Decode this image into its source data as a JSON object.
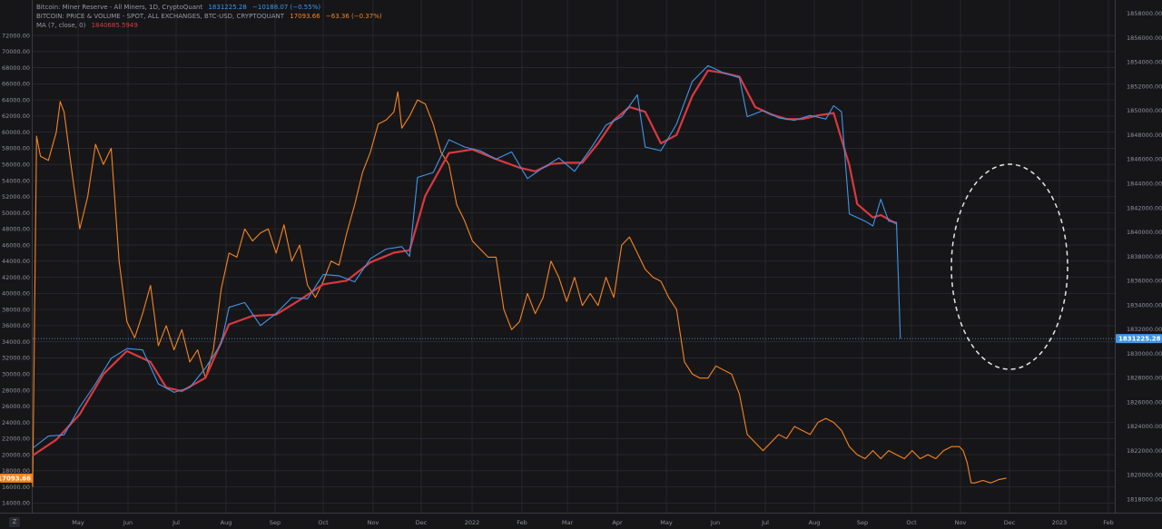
{
  "legend": {
    "series1_name": "Bitcoin: Miner Reserve - All Miners, 1D, CryptoQuant",
    "series1_value": "1831225.28",
    "series1_change": "−10188.07 (−0.55%)",
    "series2_name": "BITCOIN: PRICE & VOLUME - SPOT, ALL EXCHANGES, BTC-USD, CRYPTOQUANT",
    "series2_value": "17093.66",
    "series2_change": "−63.36 (−0.37%)",
    "series3_name": "MA (7, close, 0)",
    "series3_value": "1840685.5949"
  },
  "corner_label": "Z",
  "colors": {
    "background": "#161619",
    "grid": "#2a2b30",
    "price": "#f7841f",
    "reserve": "#3f96e8",
    "ma": "#d9393f",
    "ellipse": "#e6e6e6"
  },
  "chart_data": {
    "type": "line",
    "left_axis": {
      "ticks": [
        "14000.00",
        "16000.00",
        "18000.00",
        "20000.00",
        "22000.00",
        "24000.00",
        "26000.00",
        "28000.00",
        "30000.00",
        "32000.00",
        "34000.00",
        "36000.00",
        "38000.00",
        "40000.00",
        "42000.00",
        "44000.00",
        "46000.00",
        "48000.00",
        "50000.00",
        "52000.00",
        "54000.00",
        "56000.00",
        "58000.00",
        "60000.00",
        "62000.00",
        "64000.00",
        "66000.00",
        "68000.00",
        "70000.00",
        "72000.00"
      ],
      "last_value": "17093.66"
    },
    "right_axis": {
      "ticks": [
        "1818000.00",
        "1820000.00",
        "1822000.00",
        "1824000.00",
        "1826000.00",
        "1828000.00",
        "1830000.00",
        "1832000.00",
        "1834000.00",
        "1836000.00",
        "1838000.00",
        "1840000.00",
        "1842000.00",
        "1844000.00",
        "1846000.00",
        "1848000.00",
        "1850000.00",
        "1852000.00",
        "1854000.00",
        "1856000.00",
        "1858000.00"
      ],
      "last_value": "1831225.28"
    },
    "x_labels": [
      "May",
      "Jun",
      "Jul",
      "Aug",
      "Sep",
      "Oct",
      "Nov",
      "Dec",
      "2022",
      "Feb",
      "Mar",
      "Apr",
      "May",
      "Jun",
      "Jul",
      "Aug",
      "Sep",
      "Oct",
      "Nov",
      "Dec",
      "2023",
      "Feb"
    ],
    "price_series": [
      [
        0,
        16000
      ],
      [
        0.5,
        59500
      ],
      [
        1,
        57000
      ],
      [
        2,
        56500
      ],
      [
        3,
        60000
      ],
      [
        3.5,
        63800
      ],
      [
        4,
        62500
      ],
      [
        5,
        55000
      ],
      [
        6,
        48000
      ],
      [
        7,
        52000
      ],
      [
        8,
        58500
      ],
      [
        9,
        56000
      ],
      [
        10,
        58000
      ],
      [
        11,
        44000
      ],
      [
        12,
        36500
      ],
      [
        13,
        34500
      ],
      [
        14,
        37500
      ],
      [
        15,
        41000
      ],
      [
        16,
        33500
      ],
      [
        17,
        36000
      ],
      [
        18,
        33000
      ],
      [
        19,
        35500
      ],
      [
        20,
        31500
      ],
      [
        21,
        33000
      ],
      [
        22,
        29500
      ],
      [
        23,
        33000
      ],
      [
        24,
        40500
      ],
      [
        25,
        45000
      ],
      [
        26,
        44500
      ],
      [
        27,
        48000
      ],
      [
        28,
        46500
      ],
      [
        29,
        47500
      ],
      [
        30,
        48000
      ],
      [
        31,
        45000
      ],
      [
        32,
        48500
      ],
      [
        33,
        44000
      ],
      [
        34,
        46000
      ],
      [
        35,
        41000
      ],
      [
        36,
        39500
      ],
      [
        37,
        41500
      ],
      [
        38,
        44000
      ],
      [
        39,
        43500
      ],
      [
        40,
        47500
      ],
      [
        41,
        51000
      ],
      [
        42,
        55000
      ],
      [
        43,
        57500
      ],
      [
        44,
        61000
      ],
      [
        45,
        61500
      ],
      [
        46,
        62500
      ],
      [
        46.5,
        65000
      ],
      [
        47,
        60500
      ],
      [
        48,
        62000
      ],
      [
        49,
        64000
      ],
      [
        50,
        63500
      ],
      [
        51,
        61000
      ],
      [
        52,
        57500
      ],
      [
        53,
        56000
      ],
      [
        54,
        51000
      ],
      [
        55,
        49000
      ],
      [
        56,
        46500
      ],
      [
        57,
        45500
      ],
      [
        58,
        44500
      ],
      [
        59,
        44500
      ],
      [
        60,
        38000
      ],
      [
        61,
        35500
      ],
      [
        62,
        36500
      ],
      [
        63,
        40000
      ],
      [
        64,
        37500
      ],
      [
        65,
        39500
      ],
      [
        66,
        44000
      ],
      [
        67,
        42000
      ],
      [
        68,
        39000
      ],
      [
        69,
        42000
      ],
      [
        70,
        38500
      ],
      [
        71,
        40000
      ],
      [
        72,
        38500
      ],
      [
        73,
        42000
      ],
      [
        74,
        39500
      ],
      [
        75,
        46000
      ],
      [
        76,
        47000
      ],
      [
        77,
        45000
      ],
      [
        78,
        43000
      ],
      [
        79,
        42000
      ],
      [
        80,
        41500
      ],
      [
        81,
        39500
      ],
      [
        82,
        38000
      ],
      [
        83,
        31500
      ],
      [
        84,
        30000
      ],
      [
        85,
        29500
      ],
      [
        86,
        29500
      ],
      [
        87,
        31000
      ],
      [
        88,
        30500
      ],
      [
        89,
        30000
      ],
      [
        90,
        27500
      ],
      [
        91,
        22500
      ],
      [
        92,
        21500
      ],
      [
        93,
        20500
      ],
      [
        94,
        21500
      ],
      [
        95,
        22500
      ],
      [
        96,
        22000
      ],
      [
        97,
        23500
      ],
      [
        98,
        23000
      ],
      [
        99,
        22500
      ],
      [
        100,
        24000
      ],
      [
        101,
        24500
      ],
      [
        102,
        24000
      ],
      [
        103,
        23000
      ],
      [
        104,
        21000
      ],
      [
        105,
        20000
      ],
      [
        106,
        19500
      ],
      [
        107,
        20500
      ],
      [
        108,
        19500
      ],
      [
        109,
        20500
      ],
      [
        110,
        20000
      ],
      [
        111,
        19500
      ],
      [
        112,
        20500
      ],
      [
        113,
        19500
      ],
      [
        114,
        20000
      ],
      [
        115,
        19500
      ],
      [
        116,
        20500
      ],
      [
        117,
        21000
      ],
      [
        118,
        21000
      ],
      [
        118.5,
        20500
      ],
      [
        119,
        19000
      ],
      [
        119.5,
        16500
      ],
      [
        120,
        16500
      ],
      [
        121,
        16800
      ],
      [
        122,
        16500
      ],
      [
        123,
        16900
      ],
      [
        124,
        17093.66
      ]
    ],
    "reserve_series": [
      [
        0,
        1822200
      ],
      [
        2,
        1823200
      ],
      [
        4,
        1823300
      ],
      [
        6,
        1825600
      ],
      [
        8,
        1827500
      ],
      [
        10,
        1829600
      ],
      [
        12,
        1830400
      ],
      [
        14,
        1830300
      ],
      [
        16,
        1827500
      ],
      [
        18,
        1826800
      ],
      [
        20,
        1827200
      ],
      [
        22,
        1828800
      ],
      [
        24,
        1830800
      ],
      [
        25,
        1833800
      ],
      [
        27,
        1834200
      ],
      [
        29,
        1832300
      ],
      [
        31,
        1833300
      ],
      [
        33,
        1834600
      ],
      [
        35,
        1834500
      ],
      [
        37,
        1836500
      ],
      [
        39,
        1836400
      ],
      [
        41,
        1835900
      ],
      [
        43,
        1837800
      ],
      [
        45,
        1838600
      ],
      [
        47,
        1838800
      ],
      [
        48,
        1838000
      ],
      [
        49,
        1844500
      ],
      [
        51,
        1844900
      ],
      [
        53,
        1847600
      ],
      [
        55,
        1847000
      ],
      [
        57,
        1846700
      ],
      [
        59,
        1846000
      ],
      [
        61,
        1846600
      ],
      [
        63,
        1844400
      ],
      [
        65,
        1845300
      ],
      [
        67,
        1846100
      ],
      [
        69,
        1845000
      ],
      [
        71,
        1846800
      ],
      [
        73,
        1848800
      ],
      [
        75,
        1849500
      ],
      [
        77,
        1851300
      ],
      [
        78,
        1847000
      ],
      [
        80,
        1846700
      ],
      [
        82,
        1848900
      ],
      [
        84,
        1852400
      ],
      [
        86,
        1853700
      ],
      [
        88,
        1853100
      ],
      [
        90,
        1852700
      ],
      [
        91,
        1849500
      ],
      [
        93,
        1850000
      ],
      [
        95,
        1849400
      ],
      [
        97,
        1849200
      ],
      [
        99,
        1849600
      ],
      [
        101,
        1849300
      ],
      [
        102,
        1850400
      ],
      [
        103,
        1849900
      ],
      [
        104,
        1841500
      ],
      [
        106,
        1840900
      ],
      [
        107,
        1840500
      ],
      [
        108,
        1842700
      ],
      [
        109,
        1840900
      ],
      [
        110,
        1840800
      ],
      [
        110.5,
        1831225.28
      ]
    ],
    "ma_series": [
      [
        0,
        1821600
      ],
      [
        3,
        1822900
      ],
      [
        6,
        1825000
      ],
      [
        9,
        1828300
      ],
      [
        12,
        1830200
      ],
      [
        15,
        1829300
      ],
      [
        17,
        1827200
      ],
      [
        19,
        1826900
      ],
      [
        22,
        1828000
      ],
      [
        25,
        1832400
      ],
      [
        28,
        1833100
      ],
      [
        31,
        1833200
      ],
      [
        34,
        1834400
      ],
      [
        37,
        1835700
      ],
      [
        40,
        1836000
      ],
      [
        43,
        1837500
      ],
      [
        46,
        1838300
      ],
      [
        48,
        1838500
      ],
      [
        50,
        1843000
      ],
      [
        53,
        1846500
      ],
      [
        56,
        1846800
      ],
      [
        59,
        1846000
      ],
      [
        62,
        1845300
      ],
      [
        64,
        1845000
      ],
      [
        66,
        1845600
      ],
      [
        68,
        1845700
      ],
      [
        70,
        1845700
      ],
      [
        72,
        1847300
      ],
      [
        74,
        1849200
      ],
      [
        76,
        1850300
      ],
      [
        78,
        1849900
      ],
      [
        80,
        1847300
      ],
      [
        82,
        1848000
      ],
      [
        84,
        1851200
      ],
      [
        86,
        1853300
      ],
      [
        88,
        1853100
      ],
      [
        90,
        1852800
      ],
      [
        92,
        1850300
      ],
      [
        94,
        1849700
      ],
      [
        96,
        1849300
      ],
      [
        98,
        1849300
      ],
      [
        100,
        1849600
      ],
      [
        102,
        1849800
      ],
      [
        104,
        1845500
      ],
      [
        105,
        1842300
      ],
      [
        107,
        1841200
      ],
      [
        108,
        1841400
      ],
      [
        110,
        1840685.59
      ]
    ]
  }
}
